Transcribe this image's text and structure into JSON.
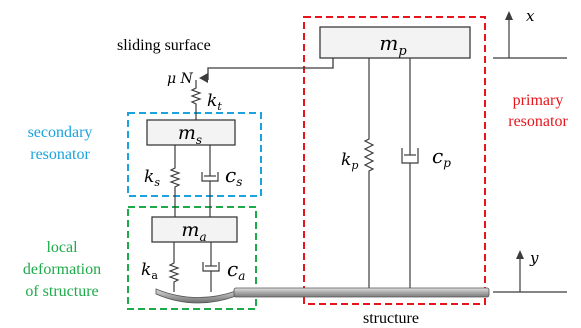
{
  "labels": {
    "sliding_surface": "sliding surface",
    "secondary_resonator_line1": "secondary",
    "secondary_resonator_line2": "resonator",
    "primary_resonator_line1": "primary",
    "primary_resonator_line2": "resonator",
    "local_line1": "local",
    "local_line2": "deformation",
    "local_line3": "of structure",
    "structure": "structure"
  },
  "symbols": {
    "mp_base": "m",
    "mp_sub": "p",
    "ms_base": "m",
    "ms_sub": "s",
    "ma_base": "m",
    "ma_sub": "a",
    "kt_base": "k",
    "kt_sub": "t",
    "ks_base": "k",
    "ks_sub": "s",
    "cs_base": "c",
    "cs_sub": "s",
    "kp_base": "k",
    "kp_sub": "p",
    "cp_base": "c",
    "cp_sub": "p",
    "ka_base": "k",
    "ka_sub": "a",
    "ca_base": "c",
    "ca_sub": "a",
    "mu_n": "μ N",
    "x": "x",
    "y": "y"
  },
  "colors": {
    "primary_box": "#e8141c",
    "primary_text": "#e8141c",
    "secondary_box": "#1ba3dd",
    "secondary_text": "#1ba3dd",
    "local_box": "#1faa4a",
    "local_text": "#1faa4a",
    "line": "#3c3c3c",
    "mass_fill": "#f3f3f3",
    "beam_fill": "#cfcfcf"
  }
}
